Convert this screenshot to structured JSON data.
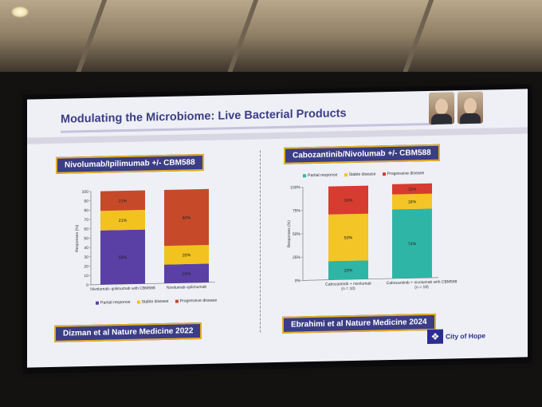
{
  "slide": {
    "title": "Modulating the Microbiome: Live Bacterial Products",
    "left_panel_label": "Nivolumab/Ipilimumab +/- CBM588",
    "right_panel_label": "Cabozantinib/Nivolumab +/- CBM588",
    "left_citation": "Dizman et al Nature Medicine 2022",
    "right_citation": "Ebrahimi et al Nature Medicine 2024",
    "logo_text": "City of Hope"
  },
  "colors": {
    "title": "#3b3d85",
    "label_fill": "#3b3d85",
    "label_border": "#e1ad28",
    "partial": "#5a3fa5",
    "stable": "#f2c21f",
    "progressive": "#c64a2a",
    "partial_right": "#2fb5a5",
    "progressive_right": "#d63c2f",
    "stable_right": "#f3c526"
  },
  "chart_data": [
    {
      "type": "bar",
      "stacked": true,
      "categories": [
        "Nivolumab–ipilimumab with CBM588",
        "Nivolumab–ipilimumab"
      ],
      "series": [
        {
          "name": "Partial response",
          "values": [
            58,
            20
          ]
        },
        {
          "name": "Stable disease",
          "values": [
            21,
            20
          ]
        },
        {
          "name": "Progressive disease",
          "values": [
            21,
            60
          ]
        }
      ],
      "data_labels": [
        [
          "58%",
          "21%",
          "21%"
        ],
        [
          "20%",
          "20%",
          "60%"
        ]
      ],
      "ylabel": "Responses (%)",
      "ylim": [
        0,
        100
      ],
      "yticks": [
        "0",
        "10",
        "20",
        "30",
        "40",
        "50",
        "60",
        "70",
        "80",
        "90",
        "100"
      ],
      "legend": "bottom"
    },
    {
      "type": "bar",
      "stacked": true,
      "categories": [
        "Cabozantinib + nivolumab (n = 10)",
        "Cabozantinib + nivolumab with CBM588 (n = 19)"
      ],
      "category_lines": [
        [
          "Cabozantinib + nivolumab",
          "(n = 10)"
        ],
        [
          "Cabozantinib + nivolumab with CBM588",
          "(n = 19)"
        ]
      ],
      "series": [
        {
          "name": "Partial response",
          "values": [
            20,
            74
          ]
        },
        {
          "name": "Stable disease",
          "values": [
            50,
            16
          ]
        },
        {
          "name": "Progressive disease",
          "values": [
            30,
            11
          ]
        }
      ],
      "data_labels": [
        [
          "20%",
          "50%",
          "30%"
        ],
        [
          "74%",
          "16%",
          "11%"
        ]
      ],
      "ylabel": "Responses (%)",
      "ylim": [
        0,
        100
      ],
      "yticks": [
        "0%",
        "25%",
        "50%",
        "75%",
        "100%"
      ],
      "legend": "top"
    }
  ]
}
